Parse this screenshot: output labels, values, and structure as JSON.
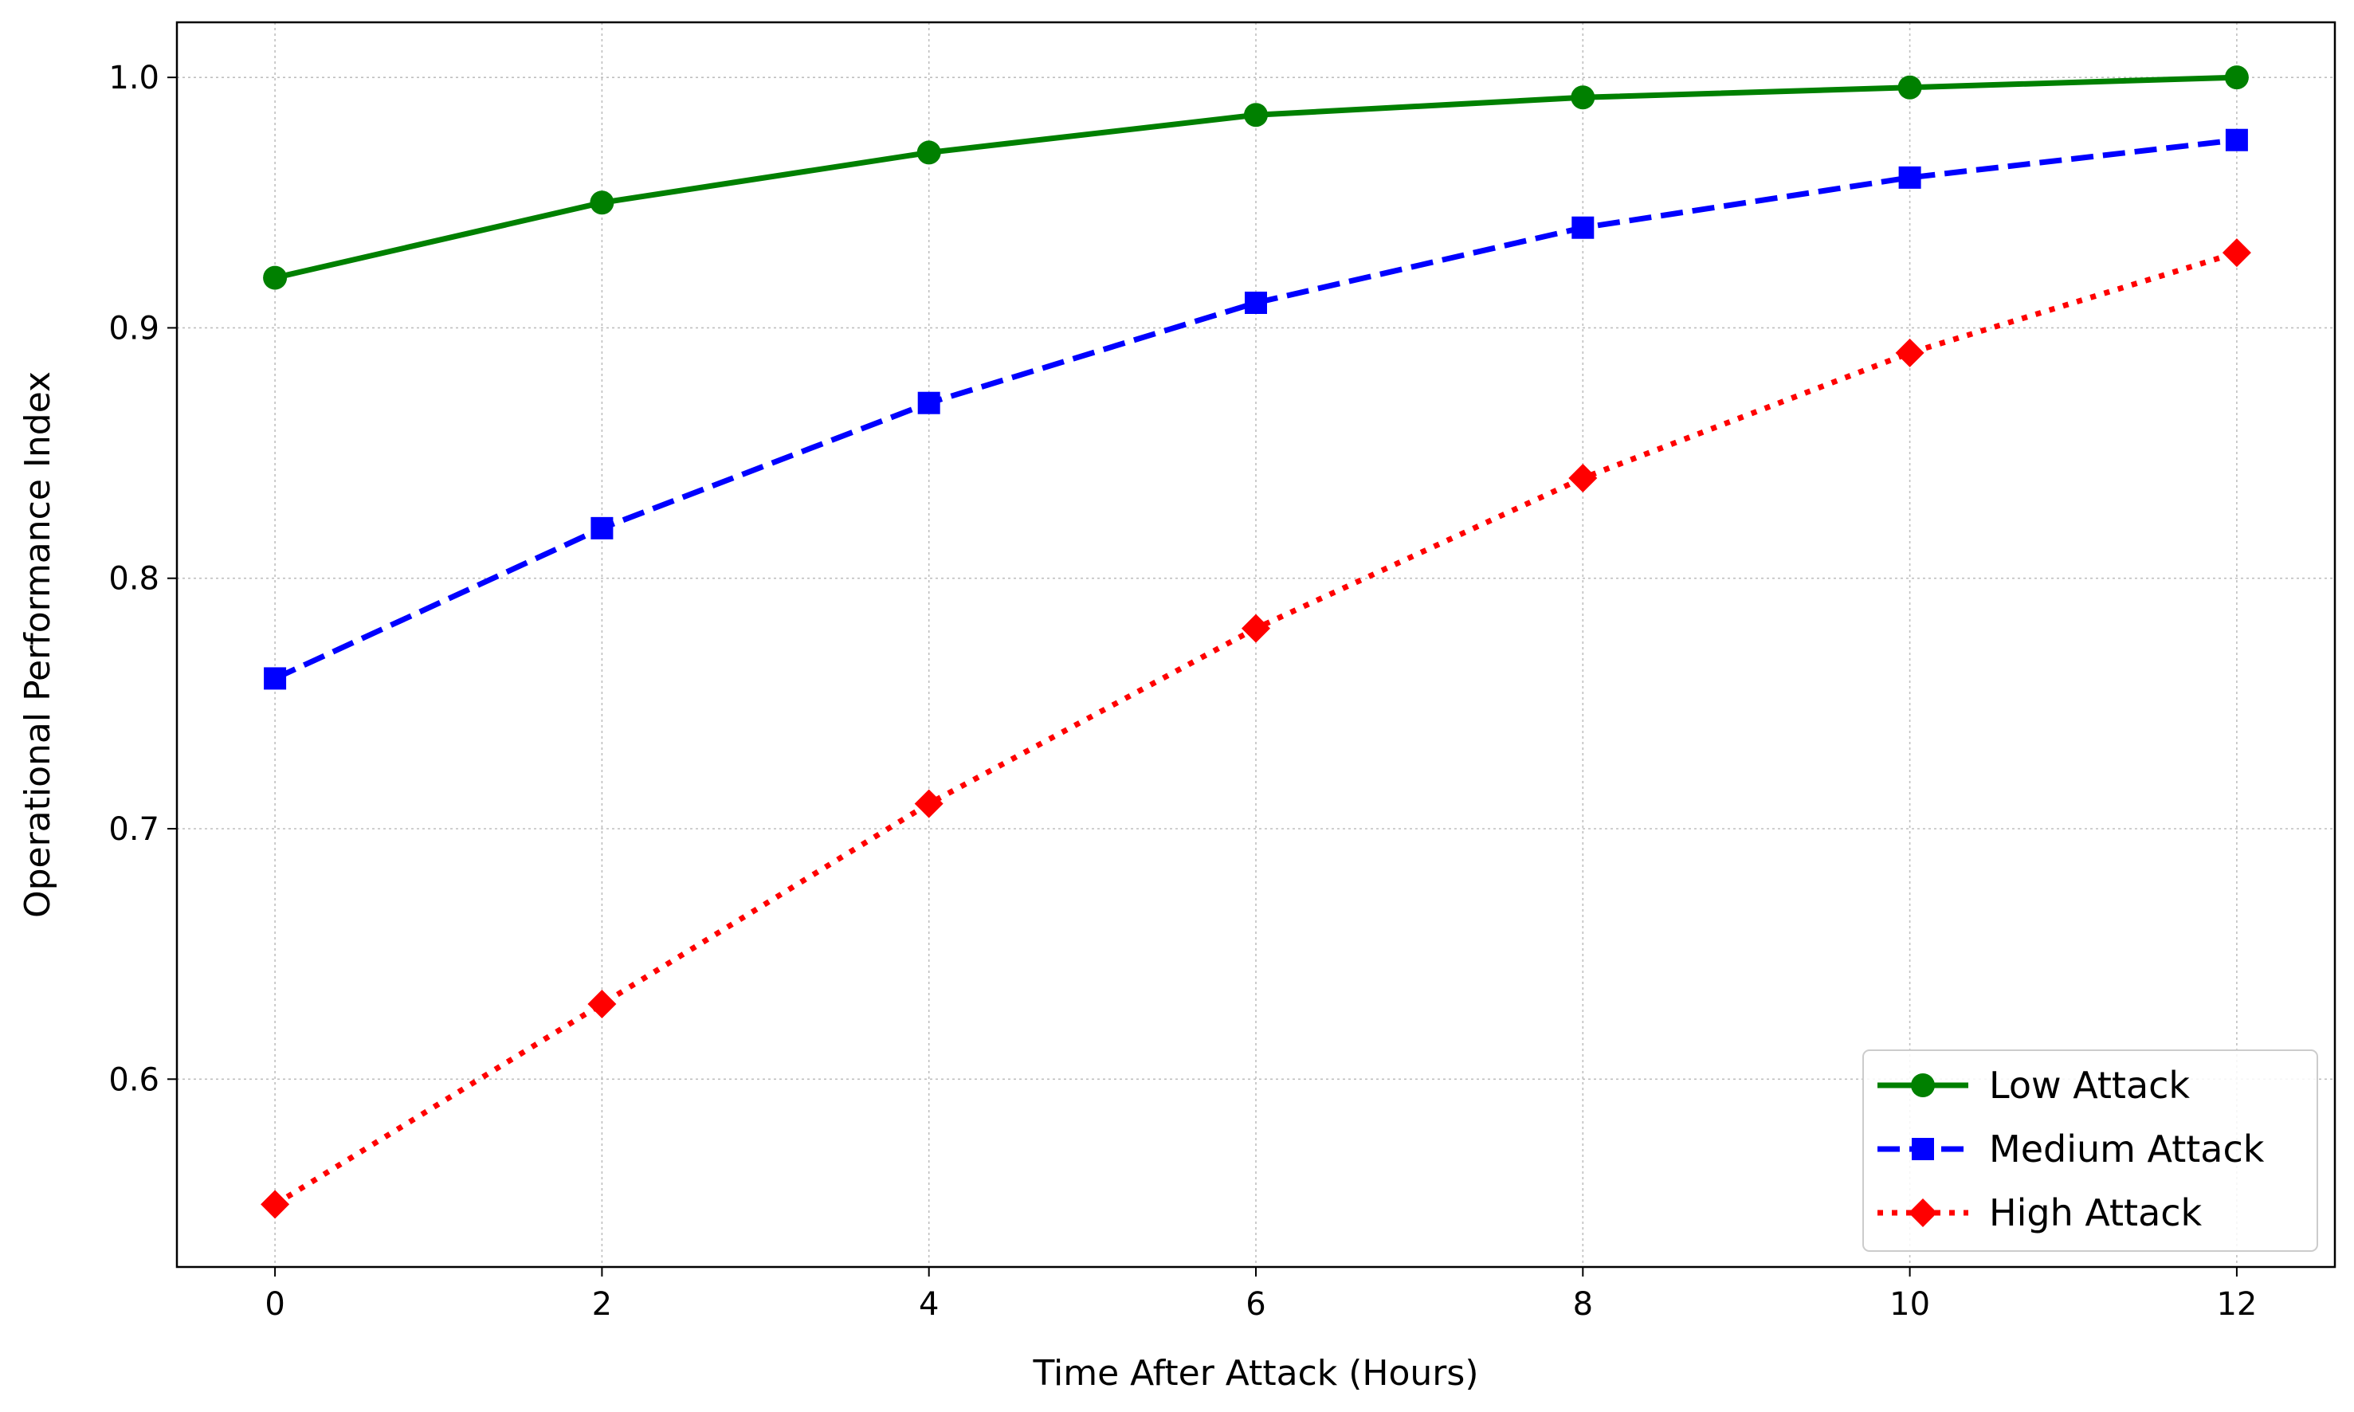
{
  "chart_data": {
    "type": "line",
    "title": "",
    "xlabel": "Time After Attack (Hours)",
    "ylabel": "Operational Performance Index",
    "x": [
      0,
      2,
      4,
      6,
      8,
      10,
      12
    ],
    "xlim": [
      -0.6,
      12.6
    ],
    "ylim": [
      0.525,
      1.022
    ],
    "xticks": [
      0,
      2,
      4,
      6,
      8,
      10,
      12
    ],
    "yticks": [
      0.6,
      0.7,
      0.8,
      0.9,
      1.0
    ],
    "xtick_labels": [
      "0",
      "2",
      "4",
      "6",
      "8",
      "10",
      "12"
    ],
    "ytick_labels": [
      "0.6",
      "0.7",
      "0.8",
      "0.9",
      "1.0"
    ],
    "grid": true,
    "legend_position": "lower-right",
    "series": [
      {
        "name": "Low Attack",
        "values": [
          0.92,
          0.95,
          0.97,
          0.985,
          0.992,
          0.996,
          1.0
        ],
        "color": "#008000",
        "line_style": "solid",
        "marker": "circle"
      },
      {
        "name": "Medium Attack",
        "values": [
          0.76,
          0.82,
          0.87,
          0.91,
          0.94,
          0.96,
          0.975
        ],
        "color": "#0000ff",
        "line_style": "dashed",
        "marker": "square"
      },
      {
        "name": "High Attack",
        "values": [
          0.55,
          0.63,
          0.71,
          0.78,
          0.84,
          0.89,
          0.93
        ],
        "color": "#ff0000",
        "line_style": "dotted",
        "marker": "diamond"
      }
    ]
  }
}
